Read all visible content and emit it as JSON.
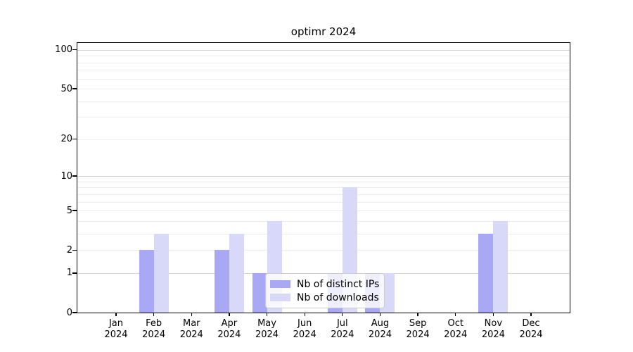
{
  "figure": {
    "background_color": "#ffffff",
    "axes_color": "#000000"
  },
  "chart_data": {
    "type": "bar",
    "title": "optimr 2024",
    "categories": [
      "Jan",
      "Feb",
      "Mar",
      "Apr",
      "May",
      "Jun",
      "Jul",
      "Aug",
      "Sep",
      "Oct",
      "Nov",
      "Dec"
    ],
    "category_year_label": "2024",
    "series": [
      {
        "name": "Nb of distinct IPs",
        "color": "#a8a8f5",
        "values": [
          0,
          2,
          0,
          2,
          1,
          0,
          1,
          1,
          0,
          0,
          3,
          0
        ]
      },
      {
        "name": "Nb of downloads",
        "color": "#d8d9f8",
        "values": [
          0,
          3,
          0,
          3,
          4,
          0,
          8,
          1,
          0,
          0,
          4,
          0
        ]
      }
    ],
    "xlabel": "",
    "ylabel": "",
    "y_axis": {
      "scale": "log1p",
      "ticks": [
        0,
        1,
        2,
        5,
        10,
        20,
        50,
        100
      ],
      "ylim": [
        0,
        113
      ]
    },
    "grid": {
      "major_at": [
        1,
        10,
        100
      ],
      "minor_at": [
        2,
        3,
        4,
        5,
        6,
        7,
        8,
        9,
        20,
        30,
        40,
        50,
        60,
        70,
        80,
        90
      ],
      "major_color": "#d2d2d2",
      "minor_color": "#ececec"
    },
    "legend_position": "lower center (inside plot)"
  }
}
